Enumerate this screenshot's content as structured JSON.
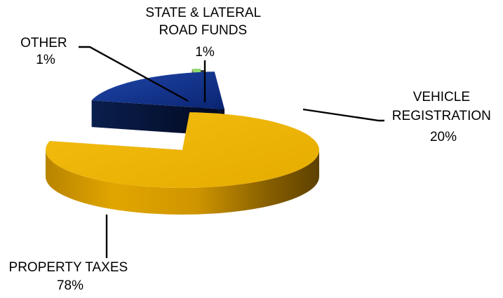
{
  "chart_data": {
    "type": "pie",
    "style": "3d-exploded",
    "legend": "none",
    "slices": [
      {
        "label": "PROPERTY TAXES",
        "percent_label": "78%",
        "value": 78,
        "color": "#ecb100"
      },
      {
        "label": "VEHICLE REGISTRATION",
        "percent_label": "20%",
        "value": 20,
        "color": "#0c2f8c"
      },
      {
        "label": "STATE & LATERAL ROAD FUNDS",
        "percent_label": "1%",
        "value": 1,
        "color": "#90d870"
      },
      {
        "label": "OTHER",
        "percent_label": "1%",
        "value": 1,
        "color": "#3a3a3a"
      }
    ],
    "labels": {
      "property": [
        "PROPERTY TAXES",
        "78%"
      ],
      "vehicle": [
        "VEHICLE",
        "REGISTRATION",
        "20%"
      ],
      "state": [
        "STATE & LATERAL",
        "ROAD FUNDS",
        "1%"
      ],
      "other": [
        "OTHER",
        "1%"
      ]
    }
  }
}
